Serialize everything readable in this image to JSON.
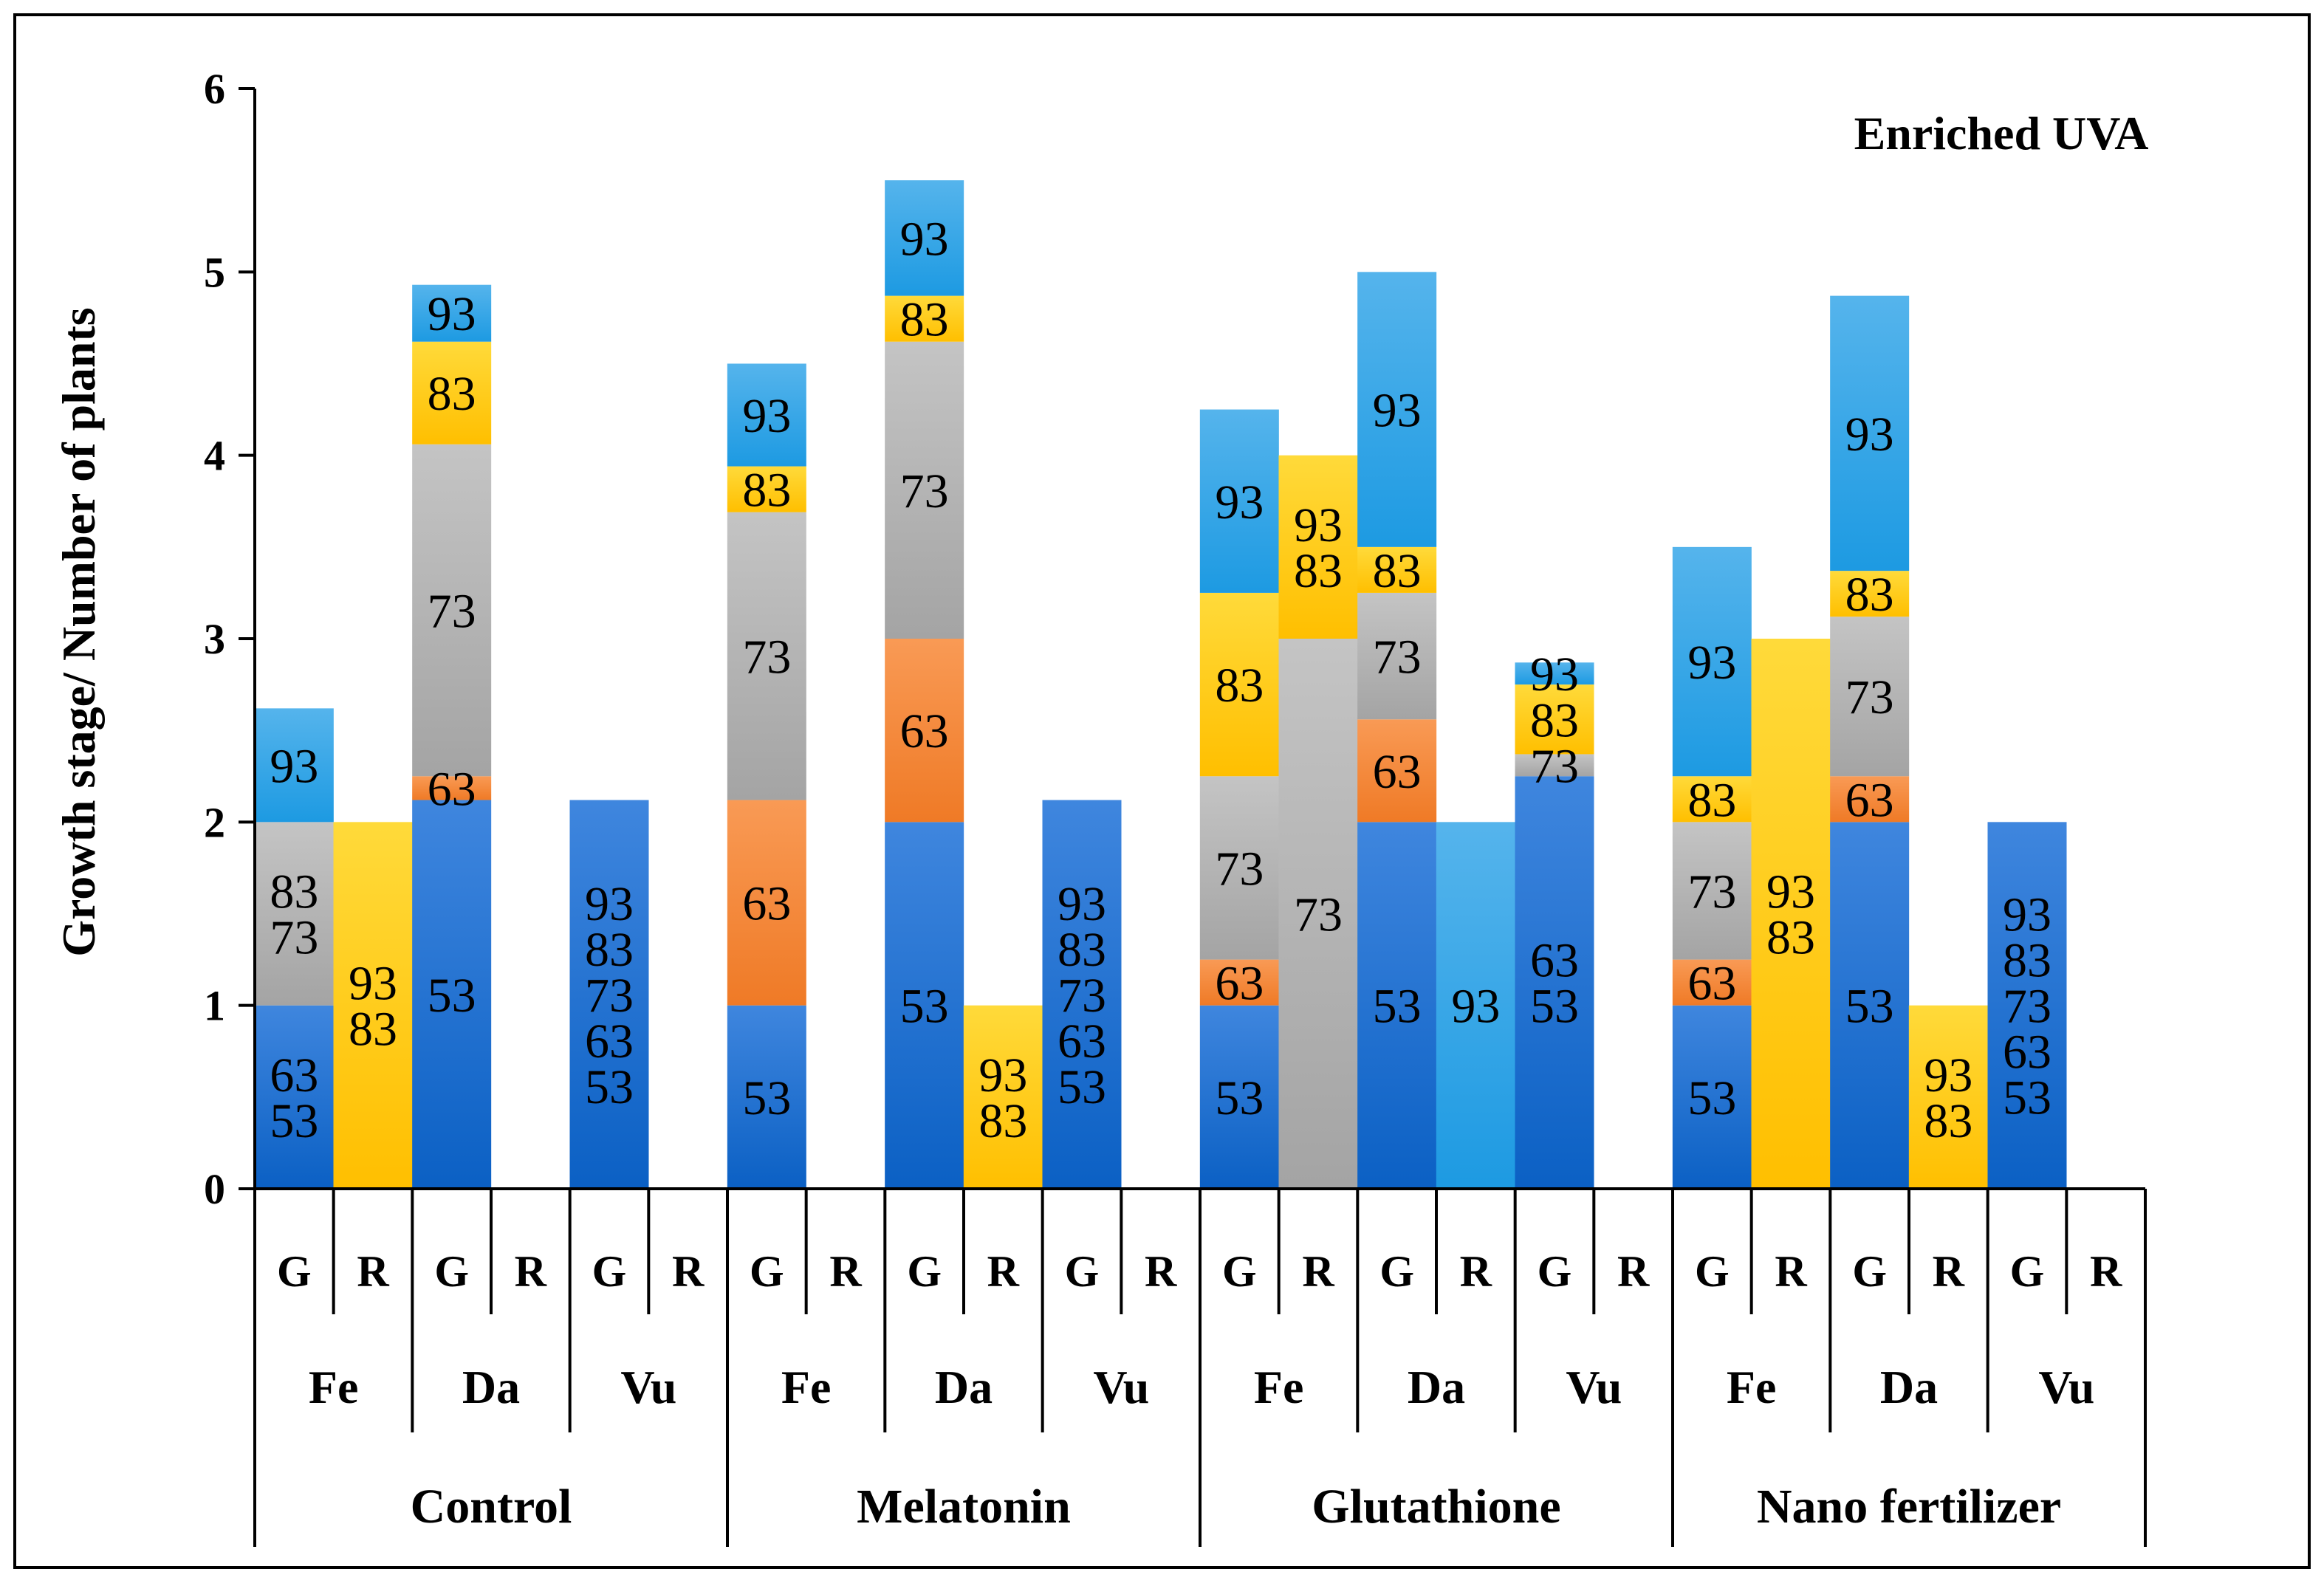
{
  "chart_data": {
    "type": "bar",
    "stacked": true,
    "title": "Enriched UVA",
    "ylabel": "Growth stage/ Number of plants",
    "xlabel": "",
    "ylim": [
      0,
      6
    ],
    "yticks": [
      "0",
      "1",
      "2",
      "3",
      "4",
      "5",
      "6"
    ],
    "grid": false,
    "colors": {
      "53": "#1f6fd1",
      "63": "#f58a3c",
      "73": "#b3b3b3",
      "83": "#ffd21f",
      "93": "#3aa6e8"
    },
    "treatments": [
      {
        "name": "Control",
        "groups": [
          {
            "name": "Fe",
            "bars": [
              {
                "label": "G",
                "segments": [
                  {
                    "stage": "53",
                    "from": 0,
                    "to": 1,
                    "color_key": "53",
                    "text": [
                      "53",
                      "63"
                    ]
                  },
                  {
                    "stage": "73",
                    "from": 1,
                    "to": 2,
                    "color_key": "73",
                    "text": [
                      "73",
                      "83"
                    ]
                  },
                  {
                    "stage": "93",
                    "from": 2,
                    "to": 2.62,
                    "color_key": "93",
                    "text": [
                      "93"
                    ]
                  }
                ]
              },
              {
                "label": "R",
                "segments": [
                  {
                    "stage": "83",
                    "from": 0,
                    "to": 2,
                    "color_key": "83",
                    "text": [
                      "83",
                      "93"
                    ]
                  }
                ]
              }
            ]
          },
          {
            "name": "Da",
            "bars": [
              {
                "label": "G",
                "segments": [
                  {
                    "stage": "53",
                    "from": 0,
                    "to": 2.12,
                    "color_key": "53",
                    "text": [
                      "53"
                    ]
                  },
                  {
                    "stage": "63",
                    "from": 2.12,
                    "to": 2.25,
                    "color_key": "63",
                    "text": [
                      "63"
                    ]
                  },
                  {
                    "stage": "73",
                    "from": 2.25,
                    "to": 4.06,
                    "color_key": "73",
                    "text": [
                      "73"
                    ]
                  },
                  {
                    "stage": "83",
                    "from": 4.06,
                    "to": 4.62,
                    "color_key": "83",
                    "text": [
                      "83"
                    ]
                  },
                  {
                    "stage": "93",
                    "from": 4.62,
                    "to": 4.93,
                    "color_key": "93",
                    "text": [
                      "93"
                    ]
                  }
                ]
              },
              {
                "label": "R",
                "segments": []
              }
            ]
          },
          {
            "name": "Vu",
            "bars": [
              {
                "label": "G",
                "segments": [
                  {
                    "stage": "53",
                    "from": 0,
                    "to": 2.12,
                    "color_key": "53",
                    "text": [
                      "53",
                      "63",
                      "73",
                      "83",
                      "93"
                    ]
                  }
                ]
              },
              {
                "label": "R",
                "segments": []
              }
            ]
          }
        ]
      },
      {
        "name": "Melatonin",
        "groups": [
          {
            "name": "Fe",
            "bars": [
              {
                "label": "G",
                "segments": [
                  {
                    "stage": "53",
                    "from": 0,
                    "to": 1,
                    "color_key": "53",
                    "text": [
                      "53"
                    ]
                  },
                  {
                    "stage": "63",
                    "from": 1,
                    "to": 2.12,
                    "color_key": "63",
                    "text": [
                      "63"
                    ]
                  },
                  {
                    "stage": "73",
                    "from": 2.12,
                    "to": 3.69,
                    "color_key": "73",
                    "text": [
                      "73"
                    ]
                  },
                  {
                    "stage": "83",
                    "from": 3.69,
                    "to": 3.94,
                    "color_key": "83",
                    "text": [
                      "83"
                    ]
                  },
                  {
                    "stage": "93",
                    "from": 3.94,
                    "to": 4.5,
                    "color_key": "93",
                    "text": [
                      "93"
                    ]
                  }
                ]
              },
              {
                "label": "R",
                "segments": []
              }
            ]
          },
          {
            "name": "Da",
            "bars": [
              {
                "label": "G",
                "segments": [
                  {
                    "stage": "53",
                    "from": 0,
                    "to": 2,
                    "color_key": "53",
                    "text": [
                      "53"
                    ]
                  },
                  {
                    "stage": "63",
                    "from": 2,
                    "to": 3,
                    "color_key": "63",
                    "text": [
                      "63"
                    ]
                  },
                  {
                    "stage": "73",
                    "from": 3,
                    "to": 4.62,
                    "color_key": "73",
                    "text": [
                      "73"
                    ]
                  },
                  {
                    "stage": "83",
                    "from": 4.62,
                    "to": 4.87,
                    "color_key": "83",
                    "text": [
                      "83"
                    ]
                  },
                  {
                    "stage": "93",
                    "from": 4.87,
                    "to": 5.5,
                    "color_key": "93",
                    "text": [
                      "93"
                    ]
                  }
                ]
              },
              {
                "label": "R",
                "segments": [
                  {
                    "stage": "83",
                    "from": 0,
                    "to": 1,
                    "color_key": "83",
                    "text": [
                      "83",
                      "93"
                    ]
                  }
                ]
              }
            ]
          },
          {
            "name": "Vu",
            "bars": [
              {
                "label": "G",
                "segments": [
                  {
                    "stage": "53",
                    "from": 0,
                    "to": 2.12,
                    "color_key": "53",
                    "text": [
                      "53",
                      "63",
                      "73",
                      "83",
                      "93"
                    ]
                  }
                ]
              },
              {
                "label": "R",
                "segments": []
              }
            ]
          }
        ]
      },
      {
        "name": "Glutathione",
        "groups": [
          {
            "name": "Fe",
            "bars": [
              {
                "label": "G",
                "segments": [
                  {
                    "stage": "53",
                    "from": 0,
                    "to": 1,
                    "color_key": "53",
                    "text": [
                      "53"
                    ]
                  },
                  {
                    "stage": "63",
                    "from": 1,
                    "to": 1.25,
                    "color_key": "63",
                    "text": [
                      "63"
                    ]
                  },
                  {
                    "stage": "73",
                    "from": 1.25,
                    "to": 2.25,
                    "color_key": "73",
                    "text": [
                      "73"
                    ]
                  },
                  {
                    "stage": "83",
                    "from": 2.25,
                    "to": 3.25,
                    "color_key": "83",
                    "text": [
                      "83"
                    ]
                  },
                  {
                    "stage": "93",
                    "from": 3.25,
                    "to": 4.25,
                    "color_key": "93",
                    "text": [
                      "93"
                    ]
                  }
                ]
              },
              {
                "label": "R",
                "segments": [
                  {
                    "stage": "73",
                    "from": 0,
                    "to": 3,
                    "color_key": "73",
                    "text": [
                      "73"
                    ]
                  },
                  {
                    "stage": "83",
                    "from": 3,
                    "to": 4,
                    "color_key": "83",
                    "text": [
                      "83",
                      "93"
                    ]
                  }
                ]
              }
            ]
          },
          {
            "name": "Da",
            "bars": [
              {
                "label": "G",
                "segments": [
                  {
                    "stage": "53",
                    "from": 0,
                    "to": 2,
                    "color_key": "53",
                    "text": [
                      "53"
                    ]
                  },
                  {
                    "stage": "63",
                    "from": 2,
                    "to": 2.56,
                    "color_key": "63",
                    "text": [
                      "63"
                    ]
                  },
                  {
                    "stage": "73",
                    "from": 2.56,
                    "to": 3.25,
                    "color_key": "73",
                    "text": [
                      "73"
                    ]
                  },
                  {
                    "stage": "83",
                    "from": 3.25,
                    "to": 3.5,
                    "color_key": "83",
                    "text": [
                      "83"
                    ]
                  },
                  {
                    "stage": "93",
                    "from": 3.5,
                    "to": 5,
                    "color_key": "93",
                    "text": [
                      "93"
                    ]
                  }
                ]
              },
              {
                "label": "R",
                "segments": [
                  {
                    "stage": "93",
                    "from": 0,
                    "to": 2,
                    "color_key": "93",
                    "text": [
                      "93"
                    ]
                  }
                ]
              }
            ]
          },
          {
            "name": "Vu",
            "bars": [
              {
                "label": "G",
                "segments": [
                  {
                    "stage": "53",
                    "from": 0,
                    "to": 2.25,
                    "color_key": "53",
                    "text": [
                      "53",
                      "63"
                    ]
                  },
                  {
                    "stage": "73",
                    "from": 2.25,
                    "to": 2.37,
                    "color_key": "73",
                    "text": [
                      "73"
                    ]
                  },
                  {
                    "stage": "83",
                    "from": 2.37,
                    "to": 2.75,
                    "color_key": "83",
                    "text": [
                      "83"
                    ]
                  },
                  {
                    "stage": "93",
                    "from": 2.75,
                    "to": 2.87,
                    "color_key": "93",
                    "text": [
                      "93"
                    ]
                  }
                ]
              },
              {
                "label": "R",
                "segments": []
              }
            ]
          }
        ]
      },
      {
        "name": "Nano fertilizer",
        "groups": [
          {
            "name": "Fe",
            "bars": [
              {
                "label": "G",
                "segments": [
                  {
                    "stage": "53",
                    "from": 0,
                    "to": 1,
                    "color_key": "53",
                    "text": [
                      "53"
                    ]
                  },
                  {
                    "stage": "63",
                    "from": 1,
                    "to": 1.25,
                    "color_key": "63",
                    "text": [
                      "63"
                    ]
                  },
                  {
                    "stage": "73",
                    "from": 1.25,
                    "to": 2,
                    "color_key": "73",
                    "text": [
                      "73"
                    ]
                  },
                  {
                    "stage": "83",
                    "from": 2,
                    "to": 2.25,
                    "color_key": "83",
                    "text": [
                      "83"
                    ]
                  },
                  {
                    "stage": "93",
                    "from": 2.25,
                    "to": 3.5,
                    "color_key": "93",
                    "text": [
                      "93"
                    ]
                  }
                ]
              },
              {
                "label": "R",
                "segments": [
                  {
                    "stage": "83",
                    "from": 0,
                    "to": 3,
                    "color_key": "83",
                    "text": [
                      "83",
                      "93"
                    ]
                  }
                ]
              }
            ]
          },
          {
            "name": "Da",
            "bars": [
              {
                "label": "G",
                "segments": [
                  {
                    "stage": "53",
                    "from": 0,
                    "to": 2,
                    "color_key": "53",
                    "text": [
                      "53"
                    ]
                  },
                  {
                    "stage": "63",
                    "from": 2,
                    "to": 2.25,
                    "color_key": "63",
                    "text": [
                      "63"
                    ]
                  },
                  {
                    "stage": "73",
                    "from": 2.25,
                    "to": 3.12,
                    "color_key": "73",
                    "text": [
                      "73"
                    ]
                  },
                  {
                    "stage": "83",
                    "from": 3.12,
                    "to": 3.37,
                    "color_key": "83",
                    "text": [
                      "83"
                    ]
                  },
                  {
                    "stage": "93",
                    "from": 3.37,
                    "to": 4.87,
                    "color_key": "93",
                    "text": [
                      "93"
                    ]
                  }
                ]
              },
              {
                "label": "R",
                "segments": [
                  {
                    "stage": "83",
                    "from": 0,
                    "to": 1,
                    "color_key": "83",
                    "text": [
                      "83",
                      "93"
                    ]
                  }
                ]
              }
            ]
          },
          {
            "name": "Vu",
            "bars": [
              {
                "label": "G",
                "segments": [
                  {
                    "stage": "53",
                    "from": 0,
                    "to": 2,
                    "color_key": "53",
                    "text": [
                      "53",
                      "63",
                      "73",
                      "83",
                      "93"
                    ]
                  }
                ]
              },
              {
                "label": "R",
                "segments": []
              }
            ]
          }
        ]
      }
    ]
  }
}
